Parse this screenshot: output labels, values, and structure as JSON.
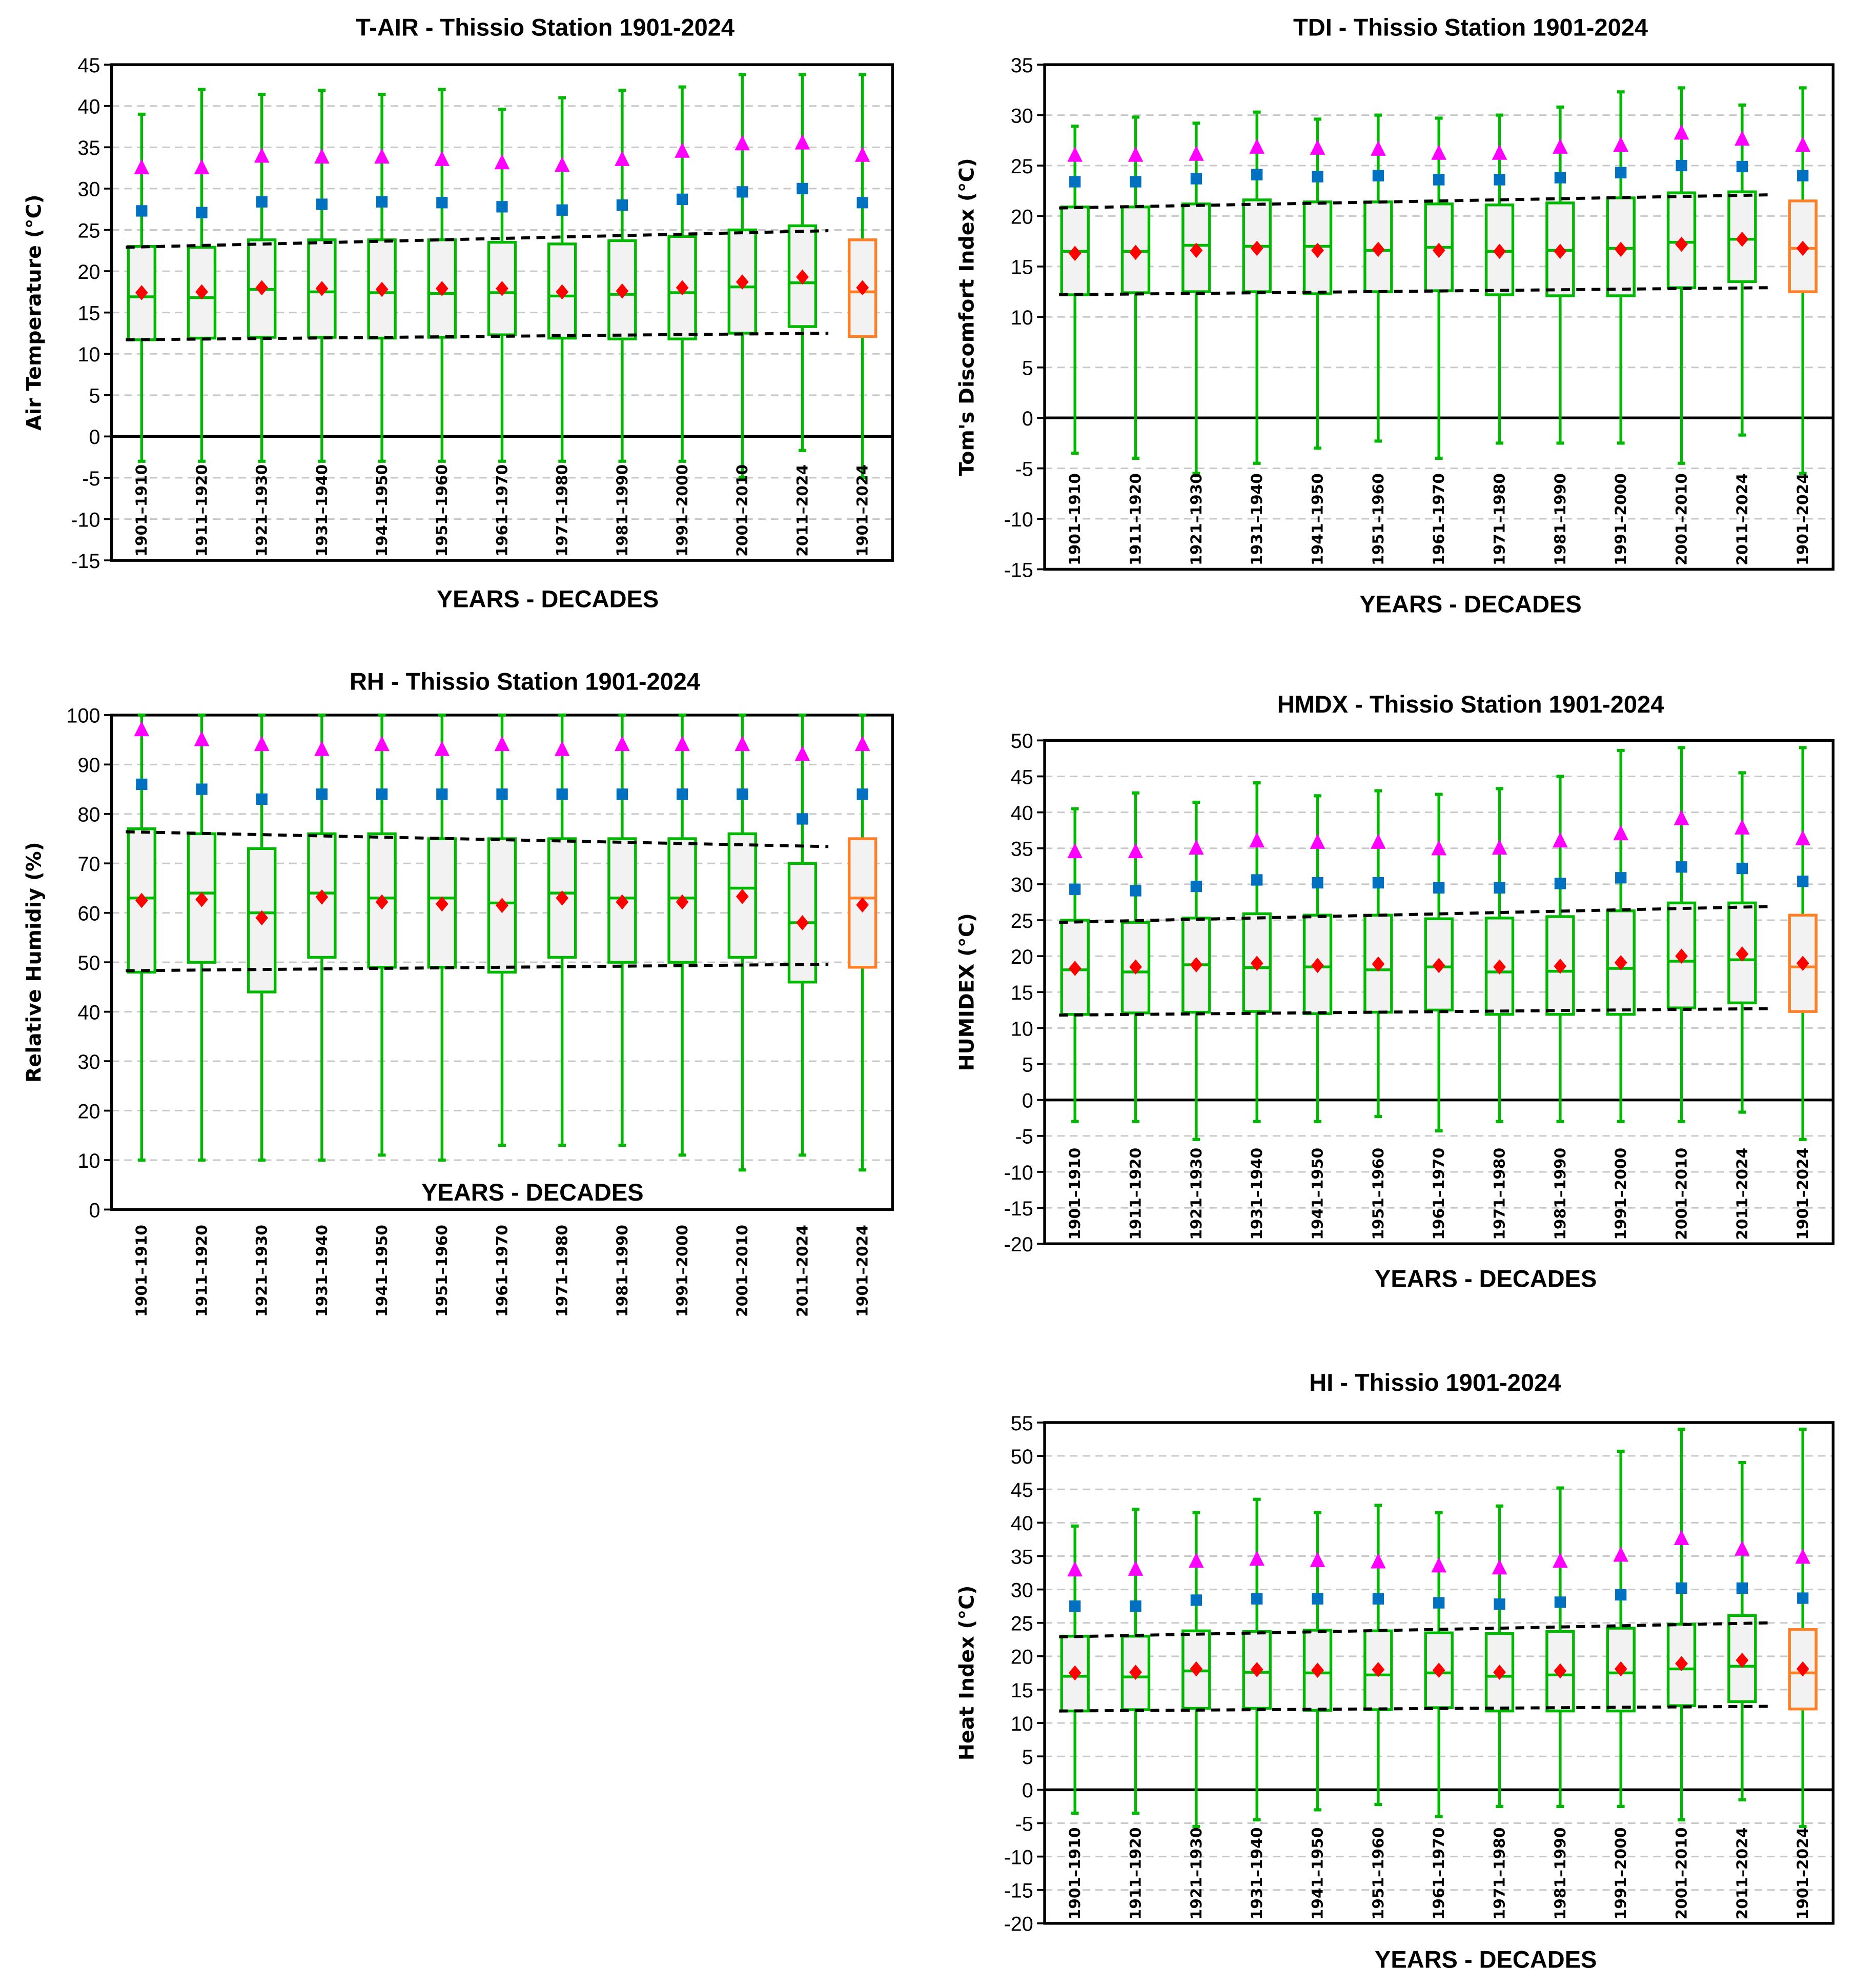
{
  "colors": {
    "box_stroke": "#00b800",
    "box_stroke_overall": "#ff7f27",
    "box_fill": "#f2f2f2",
    "mean_marker": "#ff0000",
    "square_marker": "#0070c0",
    "triangle_marker": "#ff00ff",
    "grid": "#c8c8c8",
    "trend": "#000000"
  },
  "chart_data": [
    {
      "id": "tair",
      "type": "box",
      "title": "T-AIR - Thissio Station 1901-2024",
      "xlabel": "YEARS - DECADES",
      "ylabel": "Air Temperature (°C)",
      "ylim": [
        -15,
        45
      ],
      "ystep": 5,
      "grid": true,
      "categories": [
        "1901–1910",
        "1911–1920",
        "1921–1930",
        "1931–1940",
        "1941–1950",
        "1951–1960",
        "1961–1970",
        "1971–1980",
        "1981–1990",
        "1991–2000",
        "2001–2010",
        "2011–2024",
        "1901–2024"
      ],
      "min": [
        -3,
        -3,
        -3,
        -3,
        -3,
        -3,
        -3,
        -3,
        -3,
        -3,
        -5,
        -1.7,
        -5
      ],
      "q1": [
        11.7,
        11.9,
        12,
        12,
        11.9,
        12,
        12.3,
        11.9,
        11.8,
        11.8,
        12.5,
        13.3,
        12.1
      ],
      "median": [
        16.9,
        16.8,
        17.8,
        17.5,
        17.4,
        17.3,
        17.4,
        17,
        17.2,
        17.4,
        18.1,
        18.6,
        17.5
      ],
      "q3": [
        23,
        22.9,
        23.8,
        23.8,
        23.8,
        23.8,
        23.5,
        23.3,
        23.7,
        24.2,
        25,
        25.5,
        23.8
      ],
      "max": [
        39,
        42,
        41.4,
        41.9,
        41.4,
        42,
        39.6,
        41,
        41.9,
        42.3,
        43.8,
        43.8,
        43.8
      ],
      "mean": [
        17.4,
        17.5,
        18,
        17.9,
        17.8,
        17.9,
        17.9,
        17.5,
        17.6,
        18,
        18.7,
        19.3,
        18
      ],
      "square": [
        27.3,
        27.1,
        28.4,
        28.1,
        28.4,
        28.3,
        27.8,
        27.4,
        28,
        28.7,
        29.6,
        30,
        28.3
      ],
      "triangle": [
        32.5,
        32.5,
        33.9,
        33.8,
        33.8,
        33.5,
        33.1,
        32.8,
        33.5,
        34.5,
        35.4,
        35.5,
        34
      ],
      "trend_upper": [
        22.9,
        24.9
      ],
      "trend_lower": [
        11.7,
        12.5
      ]
    },
    {
      "id": "tdi",
      "type": "box",
      "title": "TDI - Thissio Station 1901-2024",
      "xlabel": "YEARS - DECADES",
      "ylabel": "Tom's Discomfort Index (°C)",
      "ylim": [
        -15,
        35
      ],
      "ystep": 5,
      "grid": true,
      "categories": [
        "1901–1910",
        "1911–1920",
        "1921–1930",
        "1931–1940",
        "1941–1950",
        "1951–1960",
        "1961–1970",
        "1971–1980",
        "1981–1990",
        "1991–2000",
        "2001–2010",
        "2011–2024",
        "1901–2024"
      ],
      "min": [
        -3.5,
        -4,
        -5.5,
        -4.5,
        -3,
        -2.3,
        -4,
        -2.5,
        -2.5,
        -2.5,
        -4.5,
        -1.7,
        -5.5
      ],
      "q1": [
        12.2,
        12.4,
        12.5,
        12.5,
        12.3,
        12.5,
        12.6,
        12.2,
        12.1,
        12.1,
        12.9,
        13.5,
        12.5
      ],
      "median": [
        16.5,
        16.5,
        17.1,
        17,
        17,
        16.6,
        16.9,
        16.5,
        16.6,
        16.8,
        17.4,
        17.7,
        16.8
      ],
      "q3": [
        20.9,
        20.9,
        21.2,
        21.6,
        21.4,
        21.4,
        21.2,
        21.1,
        21.3,
        21.8,
        22.3,
        22.4,
        21.5
      ],
      "max": [
        28.9,
        29.8,
        29.2,
        30.3,
        29.6,
        30,
        29.7,
        30,
        30.8,
        32.3,
        32.7,
        31,
        32.7
      ],
      "mean": [
        16.3,
        16.4,
        16.6,
        16.8,
        16.6,
        16.7,
        16.6,
        16.5,
        16.5,
        16.7,
        17.2,
        17.7,
        16.8
      ],
      "square": [
        23.4,
        23.4,
        23.7,
        24.1,
        23.9,
        24,
        23.6,
        23.6,
        23.8,
        24.3,
        25,
        24.9,
        24
      ],
      "triangle": [
        26,
        26,
        26.1,
        26.8,
        26.7,
        26.6,
        26.2,
        26.2,
        26.8,
        27,
        28.2,
        27.6,
        27
      ],
      "trend_upper": [
        20.8,
        22.1
      ],
      "trend_lower": [
        12.2,
        12.9
      ]
    },
    {
      "id": "rh",
      "type": "box",
      "title": "RH - Thissio Station 1901-2024",
      "xlabel": "YEARS - DECADES",
      "ylabel": "Relative Humidiy (%)",
      "ylim": [
        0,
        100
      ],
      "ystep": 10,
      "grid": true,
      "categories": [
        "1901–1910",
        "1911–1920",
        "1921–1930",
        "1931–1940",
        "1941–1950",
        "1951–1960",
        "1961–1970",
        "1971–1980",
        "1981–1990",
        "1991–2000",
        "2001–2010",
        "2011–2024",
        "1901–2024"
      ],
      "min": [
        10,
        10,
        10,
        10,
        11,
        10,
        13,
        13,
        13,
        11,
        8,
        11,
        8
      ],
      "q1": [
        48,
        50,
        44,
        51,
        49,
        49,
        48,
        51,
        50,
        50,
        51,
        46,
        49
      ],
      "median": [
        63,
        64,
        60,
        64,
        63,
        63,
        62,
        64,
        63,
        63,
        65,
        58,
        63
      ],
      "q3": [
        77,
        76,
        73,
        76,
        76,
        75,
        75,
        75,
        75,
        75,
        76,
        70,
        75
      ],
      "max": [
        100,
        100,
        100,
        100,
        100,
        100,
        100,
        100,
        100,
        100,
        100,
        100,
        100
      ],
      "mean": [
        62.5,
        62.7,
        59,
        63.2,
        62.2,
        61.8,
        61.5,
        63,
        62.2,
        62.2,
        63.3,
        58,
        61.6
      ],
      "square": [
        86,
        85,
        83,
        84,
        84,
        84,
        84,
        84,
        84,
        84,
        84,
        79,
        84
      ],
      "triangle": [
        97,
        95,
        94,
        93,
        94,
        93,
        94,
        93,
        94,
        94,
        94,
        92,
        94
      ],
      "trend_upper": [
        76.4,
        73.4
      ],
      "trend_lower": [
        48.3,
        49.6
      ]
    },
    {
      "id": "hmdx",
      "type": "box",
      "title": "HMDX - Thissio Station 1901-2024",
      "xlabel": "YEARS - DECADES",
      "ylabel": "HUMIDEX (°C)",
      "ylim": [
        -20,
        50
      ],
      "ystep": 5,
      "grid": true,
      "categories": [
        "1901–1910",
        "1911–1920",
        "1921–1930",
        "1931–1940",
        "1941–1950",
        "1951–1960",
        "1961–1970",
        "1971–1980",
        "1981–1990",
        "1991–2000",
        "2001–2010",
        "2011–2024",
        "1901–2024"
      ],
      "min": [
        -3,
        -3,
        -5.5,
        -3,
        -3,
        -2.3,
        -4.3,
        -3,
        -3,
        -3,
        -3,
        -1.7,
        -5.5
      ],
      "q1": [
        11.9,
        12.1,
        12.2,
        12.3,
        12,
        12.2,
        12.5,
        11.9,
        11.9,
        11.9,
        12.8,
        13.5,
        12.3
      ],
      "median": [
        18.1,
        17.8,
        18.8,
        18.4,
        18.5,
        18.1,
        18.5,
        17.8,
        17.9,
        18.3,
        19.3,
        19.5,
        18.5
      ],
      "q3": [
        25,
        24.7,
        25.3,
        25.9,
        25.7,
        25.7,
        25.2,
        25.3,
        25.5,
        26.3,
        27.4,
        27.4,
        25.7
      ],
      "max": [
        40.5,
        42.7,
        41.4,
        44.1,
        42.3,
        43,
        42.5,
        43.3,
        45,
        48.6,
        49,
        45.5,
        49
      ],
      "mean": [
        18.3,
        18.5,
        18.8,
        19,
        18.7,
        18.9,
        18.7,
        18.5,
        18.6,
        19.1,
        20,
        20.3,
        19
      ],
      "square": [
        29.3,
        29.1,
        29.7,
        30.6,
        30.2,
        30.2,
        29.5,
        29.5,
        30.1,
        30.9,
        32.4,
        32.2,
        30.4
      ],
      "triangle": [
        34.5,
        34.5,
        35,
        36,
        35.8,
        35.8,
        34.9,
        35,
        36,
        37,
        39.1,
        37.8,
        36.3
      ],
      "trend_upper": [
        24.7,
        26.9
      ],
      "trend_lower": [
        11.8,
        12.7
      ]
    },
    {
      "id": "hi",
      "type": "box",
      "title": "HI - Thissio 1901-2024",
      "xlabel": "YEARS - DECADES",
      "ylabel": "Heat Index (°C)",
      "ylim": [
        -20,
        55
      ],
      "ystep": 5,
      "grid": true,
      "categories": [
        "1901–1910",
        "1911–1920",
        "1921–1930",
        "1931–1940",
        "1941–1950",
        "1951–1960",
        "1961–1970",
        "1971–1980",
        "1981–1990",
        "1991–2000",
        "2001–2010",
        "2011–2024",
        "1901–2024"
      ],
      "min": [
        -3.5,
        -3.5,
        -5.5,
        -4.5,
        -3,
        -2.2,
        -4,
        -2.5,
        -2.5,
        -2.5,
        -4.5,
        -1.5,
        -5.5
      ],
      "q1": [
        11.8,
        12,
        12.2,
        12.2,
        11.9,
        12,
        12.3,
        11.8,
        11.8,
        11.8,
        12.6,
        13.2,
        12.1
      ],
      "median": [
        17,
        16.9,
        17.8,
        17.6,
        17.5,
        17.2,
        17.5,
        17,
        17.2,
        17.5,
        18.1,
        18.5,
        17.5
      ],
      "q3": [
        23,
        23,
        23.8,
        23.7,
        23.9,
        23.8,
        23.5,
        23.4,
        23.7,
        24.2,
        24.8,
        26.1,
        24
      ],
      "max": [
        39.5,
        42,
        41.5,
        43.5,
        41.5,
        42.6,
        41.5,
        42.5,
        45.2,
        50.7,
        54,
        49,
        54
      ],
      "mean": [
        17.5,
        17.6,
        18.1,
        18,
        17.9,
        18,
        17.9,
        17.6,
        17.8,
        18.1,
        18.9,
        19.4,
        18.1
      ],
      "square": [
        27.5,
        27.5,
        28.4,
        28.6,
        28.6,
        28.6,
        28,
        27.8,
        28.1,
        29.2,
        30.2,
        30.2,
        28.7
      ],
      "triangle": [
        32.9,
        33,
        34.2,
        34.5,
        34.3,
        34.1,
        33.5,
        33.2,
        34.2,
        35.1,
        37.6,
        36,
        34.8
      ],
      "trend_upper": [
        22.9,
        25
      ],
      "trend_lower": [
        11.8,
        12.5
      ]
    }
  ]
}
